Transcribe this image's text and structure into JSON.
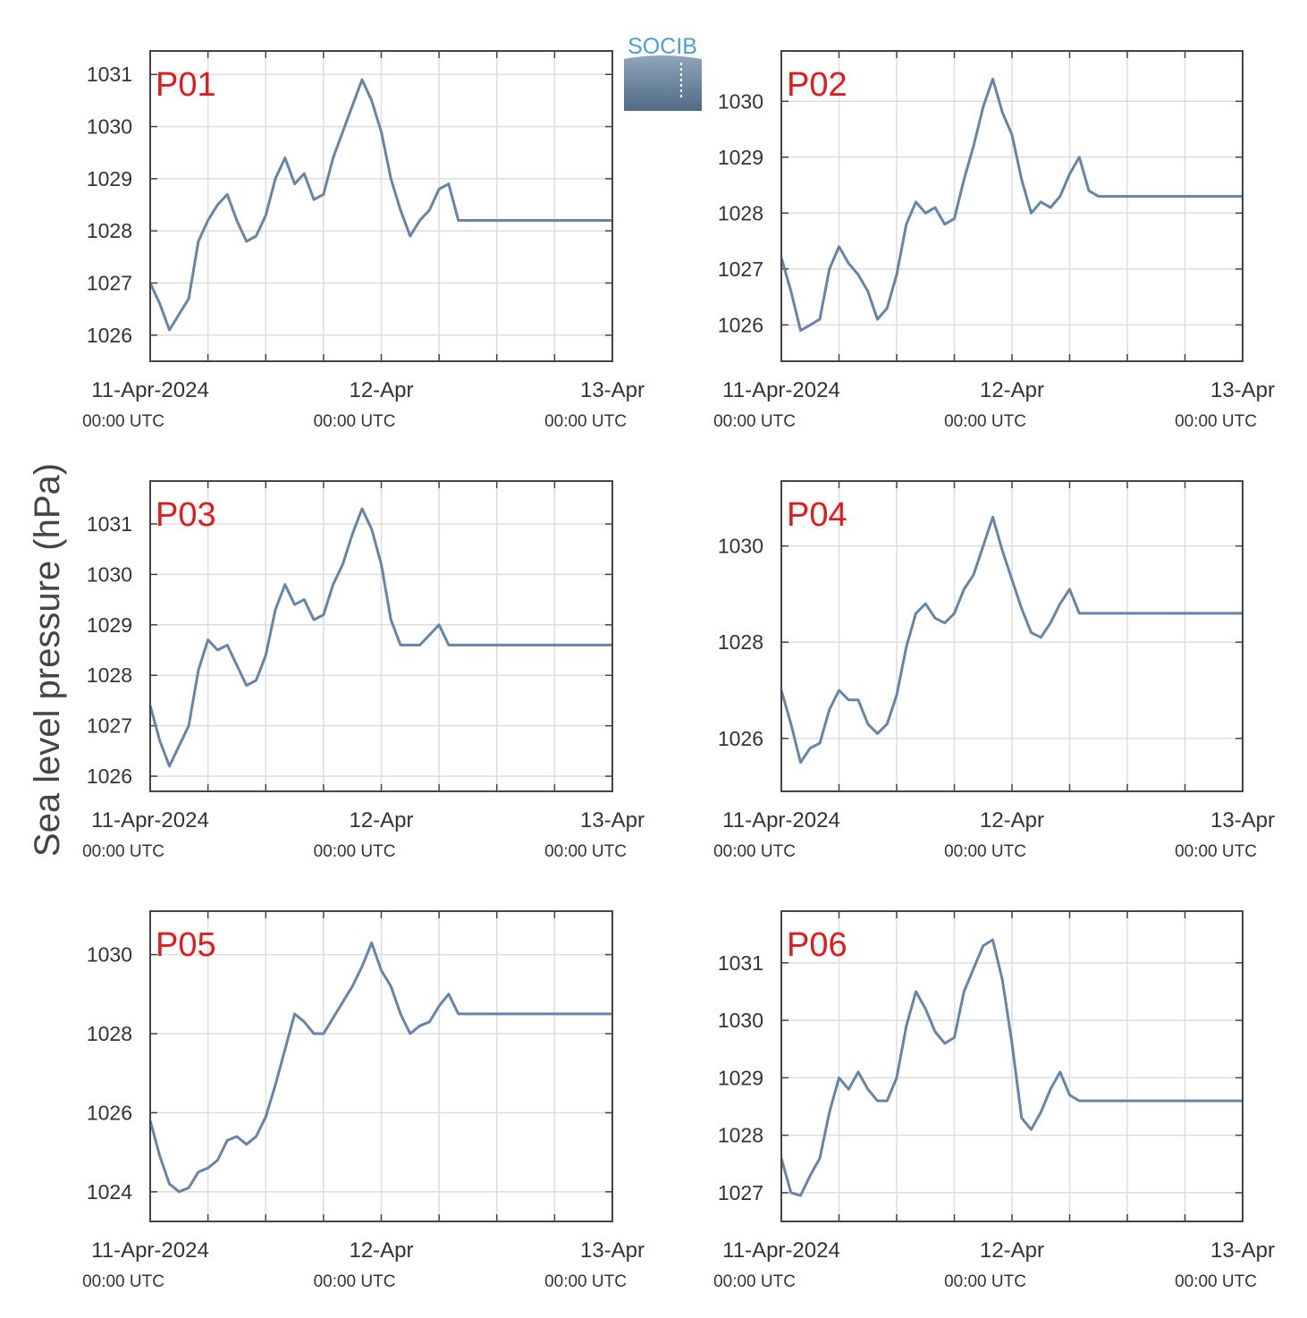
{
  "figure": {
    "ylabel": "Sea level pressure (hPa)",
    "logo_text": "SOCIB",
    "colors": {
      "line": "#6585a8",
      "title": "#e3191c",
      "grid": "#dddddd",
      "axis": "#444444",
      "text": "#333333"
    }
  },
  "chart_data": [
    {
      "type": "line",
      "title": "P01",
      "xlim": [
        "11-Apr-2024 00:00",
        "13-Apr-2024 00:00"
      ],
      "xticks": [
        {
          "label": "11-Apr-2024",
          "sub": "00:00 UTC"
        },
        {
          "label": "12-Apr",
          "sub": "00:00 UTC"
        },
        {
          "label": "13-Apr",
          "sub": "00:00 UTC"
        }
      ],
      "ylim": [
        1025.5,
        1031.45
      ],
      "yticks": [
        1026,
        1027,
        1028,
        1029,
        1030,
        1031
      ],
      "grid": true,
      "x_hours": [
        0,
        1,
        2,
        3,
        4,
        5,
        6,
        7,
        8,
        9,
        10,
        11,
        12,
        13,
        14,
        15,
        16,
        17,
        18,
        19,
        20,
        21,
        22,
        23,
        24,
        25,
        26,
        27,
        28,
        29,
        30,
        31,
        32,
        33,
        34,
        35,
        36,
        37,
        38,
        39,
        40,
        41,
        42,
        43,
        44,
        45,
        46,
        47,
        48
      ],
      "values": [
        1027.0,
        1026.6,
        1026.1,
        1026.4,
        1026.7,
        1027.8,
        1028.2,
        1028.5,
        1028.7,
        1028.2,
        1027.8,
        1027.9,
        1028.3,
        1029.0,
        1029.4,
        1028.9,
        1029.1,
        1028.6,
        1028.7,
        1029.4,
        1029.9,
        1030.4,
        1030.9,
        1030.5,
        1029.9,
        1029.0,
        1028.4,
        1027.9,
        1028.2,
        1028.4,
        1028.8,
        1028.9,
        1028.2,
        1028.2,
        1028.2,
        1028.2,
        1028.2,
        1028.2,
        1028.2,
        1028.2,
        1028.2,
        1028.2,
        1028.2,
        1028.2,
        1028.2,
        1028.2,
        1028.2,
        1028.2,
        1028.2
      ]
    },
    {
      "type": "line",
      "title": "P02",
      "xlim": [
        "11-Apr-2024 00:00",
        "13-Apr-2024 00:00"
      ],
      "xticks": [
        {
          "label": "11-Apr-2024",
          "sub": "00:00 UTC"
        },
        {
          "label": "12-Apr",
          "sub": "00:00 UTC"
        },
        {
          "label": "13-Apr",
          "sub": "00:00 UTC"
        }
      ],
      "ylim": [
        1025.35,
        1030.9
      ],
      "yticks": [
        1026,
        1027,
        1028,
        1029,
        1030
      ],
      "grid": true,
      "x_hours": [
        0,
        1,
        2,
        3,
        4,
        5,
        6,
        7,
        8,
        9,
        10,
        11,
        12,
        13,
        14,
        15,
        16,
        17,
        18,
        19,
        20,
        21,
        22,
        23,
        24,
        25,
        26,
        27,
        28,
        29,
        30,
        31,
        32,
        33,
        34,
        35,
        36,
        37,
        38,
        39,
        40,
        41,
        42,
        43,
        44,
        45,
        46,
        47,
        48
      ],
      "values": [
        1027.2,
        1026.6,
        1025.9,
        1026.0,
        1026.1,
        1027.0,
        1027.4,
        1027.1,
        1026.9,
        1026.6,
        1026.1,
        1026.3,
        1026.9,
        1027.8,
        1028.2,
        1028.0,
        1028.1,
        1027.8,
        1027.9,
        1028.6,
        1029.2,
        1029.9,
        1030.4,
        1029.8,
        1029.4,
        1028.6,
        1028.0,
        1028.2,
        1028.1,
        1028.3,
        1028.7,
        1029.0,
        1028.4,
        1028.3,
        1028.3,
        1028.3,
        1028.3,
        1028.3,
        1028.3,
        1028.3,
        1028.3,
        1028.3,
        1028.3,
        1028.3,
        1028.3,
        1028.3,
        1028.3,
        1028.3,
        1028.3
      ]
    },
    {
      "type": "line",
      "title": "P03",
      "xlim": [
        "11-Apr-2024 00:00",
        "13-Apr-2024 00:00"
      ],
      "xticks": [
        {
          "label": "11-Apr-2024",
          "sub": "00:00 UTC"
        },
        {
          "label": "12-Apr",
          "sub": "00:00 UTC"
        },
        {
          "label": "13-Apr",
          "sub": "00:00 UTC"
        }
      ],
      "ylim": [
        1025.7,
        1031.85
      ],
      "yticks": [
        1026,
        1027,
        1028,
        1029,
        1030,
        1031
      ],
      "grid": true,
      "x_hours": [
        0,
        1,
        2,
        3,
        4,
        5,
        6,
        7,
        8,
        9,
        10,
        11,
        12,
        13,
        14,
        15,
        16,
        17,
        18,
        19,
        20,
        21,
        22,
        23,
        24,
        25,
        26,
        27,
        28,
        29,
        30,
        31,
        32,
        33,
        34,
        35,
        36,
        37,
        38,
        39,
        40,
        41,
        42,
        43,
        44,
        45,
        46,
        47,
        48
      ],
      "values": [
        1027.4,
        1026.7,
        1026.2,
        1026.6,
        1027.0,
        1028.1,
        1028.7,
        1028.5,
        1028.6,
        1028.2,
        1027.8,
        1027.9,
        1028.4,
        1029.3,
        1029.8,
        1029.4,
        1029.5,
        1029.1,
        1029.2,
        1029.8,
        1030.2,
        1030.8,
        1031.3,
        1030.9,
        1030.2,
        1029.1,
        1028.6,
        1028.6,
        1028.6,
        1028.8,
        1029.0,
        1028.6,
        1028.6,
        1028.6,
        1028.6,
        1028.6,
        1028.6,
        1028.6,
        1028.6,
        1028.6,
        1028.6,
        1028.6,
        1028.6,
        1028.6,
        1028.6,
        1028.6,
        1028.6,
        1028.6,
        1028.6
      ]
    },
    {
      "type": "line",
      "title": "P04",
      "xlim": [
        "11-Apr-2024 00:00",
        "13-Apr-2024 00:00"
      ],
      "xticks": [
        {
          "label": "11-Apr-2024",
          "sub": "00:00 UTC"
        },
        {
          "label": "12-Apr",
          "sub": "00:00 UTC"
        },
        {
          "label": "13-Apr",
          "sub": "00:00 UTC"
        }
      ],
      "ylim": [
        1024.9,
        1031.35
      ],
      "yticks": [
        1026,
        1028,
        1030
      ],
      "grid": true,
      "x_hours": [
        0,
        1,
        2,
        3,
        4,
        5,
        6,
        7,
        8,
        9,
        10,
        11,
        12,
        13,
        14,
        15,
        16,
        17,
        18,
        19,
        20,
        21,
        22,
        23,
        24,
        25,
        26,
        27,
        28,
        29,
        30,
        31,
        32,
        33,
        34,
        35,
        36,
        37,
        38,
        39,
        40,
        41,
        42,
        43,
        44,
        45,
        46,
        47,
        48
      ],
      "values": [
        1027.0,
        1026.3,
        1025.5,
        1025.8,
        1025.9,
        1026.6,
        1027.0,
        1026.8,
        1026.8,
        1026.3,
        1026.1,
        1026.3,
        1026.9,
        1027.9,
        1028.6,
        1028.8,
        1028.5,
        1028.4,
        1028.6,
        1029.1,
        1029.4,
        1030.0,
        1030.6,
        1029.9,
        1029.3,
        1028.7,
        1028.2,
        1028.1,
        1028.4,
        1028.8,
        1029.1,
        1028.6,
        1028.6,
        1028.6,
        1028.6,
        1028.6,
        1028.6,
        1028.6,
        1028.6,
        1028.6,
        1028.6,
        1028.6,
        1028.6,
        1028.6,
        1028.6,
        1028.6,
        1028.6,
        1028.6,
        1028.6
      ]
    },
    {
      "type": "line",
      "title": "P05",
      "xlim": [
        "11-Apr-2024 00:00",
        "13-Apr-2024 00:00"
      ],
      "xticks": [
        {
          "label": "11-Apr-2024",
          "sub": "00:00 UTC"
        },
        {
          "label": "12-Apr",
          "sub": "00:00 UTC"
        },
        {
          "label": "13-Apr",
          "sub": "00:00 UTC"
        }
      ],
      "ylim": [
        1023.25,
        1031.1
      ],
      "yticks": [
        1024,
        1026,
        1028,
        1030
      ],
      "grid": true,
      "x_hours": [
        0,
        1,
        2,
        3,
        4,
        5,
        6,
        7,
        8,
        9,
        10,
        11,
        12,
        13,
        14,
        15,
        16,
        17,
        18,
        19,
        20,
        21,
        22,
        23,
        24,
        25,
        26,
        27,
        28,
        29,
        30,
        31,
        32,
        33,
        34,
        35,
        36,
        37,
        38,
        39,
        40,
        41,
        42,
        43,
        44,
        45,
        46,
        47,
        48
      ],
      "values": [
        1025.8,
        1024.9,
        1024.2,
        1024.0,
        1024.1,
        1024.5,
        1024.6,
        1024.8,
        1025.3,
        1025.4,
        1025.2,
        1025.4,
        1025.9,
        1026.7,
        1027.6,
        1028.5,
        1028.3,
        1028.0,
        1028.0,
        1028.4,
        1028.8,
        1029.2,
        1029.7,
        1030.3,
        1029.6,
        1029.2,
        1028.5,
        1028.0,
        1028.2,
        1028.3,
        1028.7,
        1029.0,
        1028.5,
        1028.5,
        1028.5,
        1028.5,
        1028.5,
        1028.5,
        1028.5,
        1028.5,
        1028.5,
        1028.5,
        1028.5,
        1028.5,
        1028.5,
        1028.5,
        1028.5,
        1028.5,
        1028.5
      ]
    },
    {
      "type": "line",
      "title": "P06",
      "xlim": [
        "11-Apr-2024 00:00",
        "13-Apr-2024 00:00"
      ],
      "xticks": [
        {
          "label": "11-Apr-2024",
          "sub": "00:00 UTC"
        },
        {
          "label": "12-Apr",
          "sub": "00:00 UTC"
        },
        {
          "label": "13-Apr",
          "sub": "00:00 UTC"
        }
      ],
      "ylim": [
        1026.5,
        1031.9
      ],
      "yticks": [
        1027,
        1028,
        1029,
        1030,
        1031
      ],
      "grid": true,
      "x_hours": [
        0,
        1,
        2,
        3,
        4,
        5,
        6,
        7,
        8,
        9,
        10,
        11,
        12,
        13,
        14,
        15,
        16,
        17,
        18,
        19,
        20,
        21,
        22,
        23,
        24,
        25,
        26,
        27,
        28,
        29,
        30,
        31,
        32,
        33,
        34,
        35,
        36,
        37,
        38,
        39,
        40,
        41,
        42,
        43,
        44,
        45,
        46,
        47,
        48
      ],
      "values": [
        1027.6,
        1027.0,
        1026.95,
        1027.3,
        1027.6,
        1028.4,
        1029.0,
        1028.8,
        1029.1,
        1028.8,
        1028.6,
        1028.6,
        1029.0,
        1029.9,
        1030.5,
        1030.2,
        1029.8,
        1029.6,
        1029.7,
        1030.5,
        1030.9,
        1031.3,
        1031.4,
        1030.7,
        1029.6,
        1028.3,
        1028.1,
        1028.4,
        1028.8,
        1029.1,
        1028.7,
        1028.6,
        1028.6,
        1028.6,
        1028.6,
        1028.6,
        1028.6,
        1028.6,
        1028.6,
        1028.6,
        1028.6,
        1028.6,
        1028.6,
        1028.6,
        1028.6,
        1028.6,
        1028.6,
        1028.6,
        1028.6
      ]
    }
  ]
}
